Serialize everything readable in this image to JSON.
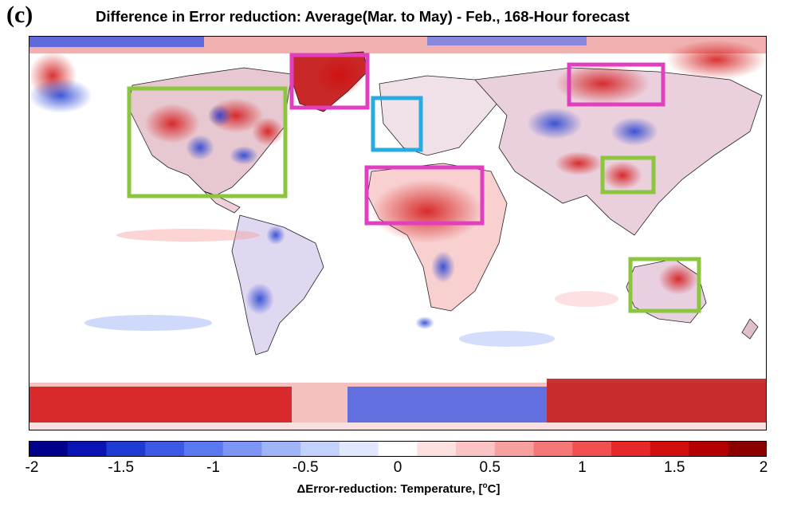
{
  "panel_label": "(c)",
  "title": "Difference in Error reduction: Average(Mar. to May) - Feb., 168-Hour forecast",
  "colorbar": {
    "min": -2,
    "max": 2,
    "ticks": [
      "-2",
      "-1.5",
      "-1",
      "-0.5",
      "0",
      "0.5",
      "1",
      "1.5",
      "2"
    ],
    "label_prefix": "ΔError-reduction: Temperature, [",
    "label_sup": "o",
    "label_suffix": "C]",
    "colors": [
      "#00008c",
      "#0a14b4",
      "#1e3cd2",
      "#3c5ae6",
      "#5a78f0",
      "#7d96f5",
      "#a0b4f8",
      "#c3d2fb",
      "#e1e8fd",
      "#ffffff",
      "#fde1e1",
      "#fbc3c3",
      "#f8a0a0",
      "#f57878",
      "#f05050",
      "#e62828",
      "#d20f0f",
      "#b40000",
      "#8c0000"
    ]
  },
  "regions": [
    {
      "id": "north-america",
      "color": "#8cc63f"
    },
    {
      "id": "greenland",
      "color": "#e040c0"
    },
    {
      "id": "europe",
      "color": "#29abe2"
    },
    {
      "id": "siberia",
      "color": "#e040c0"
    },
    {
      "id": "sahara",
      "color": "#e040c0"
    },
    {
      "id": "east-asia",
      "color": "#8cc63f"
    },
    {
      "id": "australia",
      "color": "#8cc63f"
    }
  ]
}
